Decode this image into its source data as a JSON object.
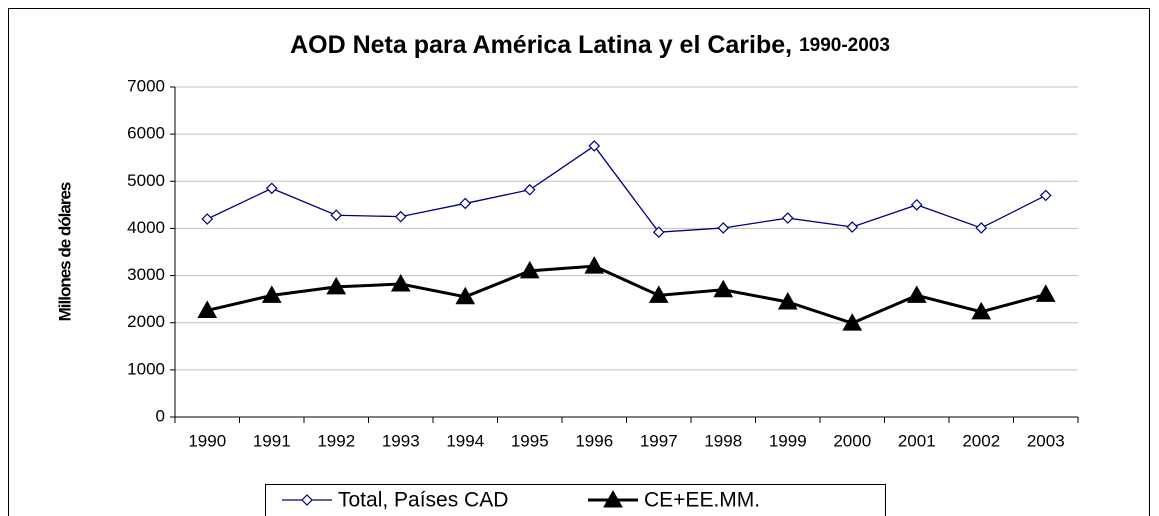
{
  "chart_data": {
    "type": "line",
    "title": [
      "AOD Neta para América Latina y el Caribe,",
      "1990-2003"
    ],
    "y_label": "Millones de dólares",
    "categories": [
      "1990",
      "1991",
      "1992",
      "1993",
      "1994",
      "1995",
      "1996",
      "1997",
      "1998",
      "1999",
      "2000",
      "2001",
      "2002",
      "2003"
    ],
    "series": [
      {
        "name": "Total, Países CAD",
        "color": "#000080",
        "marker": "diamond",
        "values": [
          4200,
          4850,
          4280,
          4250,
          4530,
          4820,
          5750,
          3920,
          4010,
          4220,
          4030,
          4500,
          4010,
          4700
        ]
      },
      {
        "name": "CE+EE.MM.",
        "color": "#000000",
        "marker": "triangle",
        "values": [
          2260,
          2580,
          2760,
          2820,
          2550,
          3100,
          3200,
          2580,
          2700,
          2440,
          1990,
          2580,
          2230,
          2600
        ]
      }
    ],
    "ylim": [
      0,
      7000
    ],
    "yticks": [
      0,
      1000,
      2000,
      3000,
      4000,
      5000,
      6000,
      7000
    ],
    "grid": true,
    "legend": "bottom"
  }
}
